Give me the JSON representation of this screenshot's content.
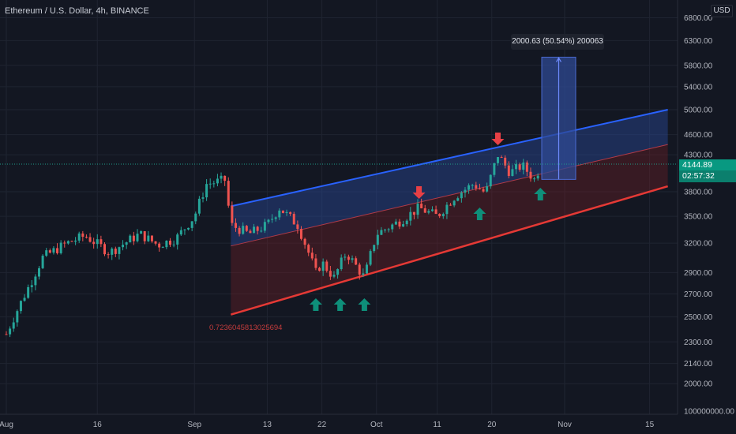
{
  "header": {
    "title": "Ethereum / U.S. Dollar, 4h, BINANCE",
    "currency_badge": "USD"
  },
  "price_tags": {
    "last_price": "4144.89",
    "countdown": "02:57:32"
  },
  "measure_label": "2000.63 (50.54%) 200063",
  "fib_label": "0.7236045813025694",
  "colors": {
    "background": "#131722",
    "grid": "#1f2431",
    "candle_up": "#26a69a",
    "candle_down": "#ef5350",
    "channel_upper": "#2962ff",
    "channel_lower": "#e53935",
    "channel_fill_blue": "#2a4a9a",
    "channel_fill_red": "#7a1f26",
    "arrow_up": "#0e8f7a",
    "arrow_down": "#e84045",
    "price_tag_up": "#089981",
    "measure_box": "#2f4a93"
  },
  "chart_data": {
    "type": "candlestick",
    "symbol": "Ethereum / U.S. Dollar",
    "timeframe": "4h",
    "exchange": "BINANCE",
    "y_axis": {
      "scale": "log",
      "ticks": [
        "6800.00",
        "6300.00",
        "5800.00",
        "5400.00",
        "5000.00",
        "4600.00",
        "4300.00",
        "3800.00",
        "3500.00",
        "3200.00",
        "2900.00",
        "2700.00",
        "2500.00",
        "2300.00",
        "2140.00",
        "2000.00",
        "100000000.00"
      ]
    },
    "x_axis": {
      "ticks": [
        "Aug",
        "16",
        "Sep",
        "13",
        "22",
        "Oct",
        "11",
        "20",
        "Nov",
        "15"
      ]
    },
    "anchor_closes": [
      {
        "date": "Aug 1",
        "price": 2360
      },
      {
        "date": "Aug 5",
        "price": 2800
      },
      {
        "date": "Aug 7",
        "price": 3050
      },
      {
        "date": "Aug 11",
        "price": 3200
      },
      {
        "date": "Aug 14",
        "price": 3280
      },
      {
        "date": "Aug 18",
        "price": 3100
      },
      {
        "date": "Aug 23",
        "price": 3300
      },
      {
        "date": "Aug 26",
        "price": 3180
      },
      {
        "date": "Aug 29",
        "price": 3250
      },
      {
        "date": "Sep 1",
        "price": 3500
      },
      {
        "date": "Sep 3",
        "price": 3900
      },
      {
        "date": "Sep 6",
        "price": 3950
      },
      {
        "date": "Sep 7",
        "price": 3400
      },
      {
        "date": "Sep 10",
        "price": 3300
      },
      {
        "date": "Sep 13",
        "price": 3400
      },
      {
        "date": "Sep 15",
        "price": 3600
      },
      {
        "date": "Sep 18",
        "price": 3400
      },
      {
        "date": "Sep 21",
        "price": 2900
      },
      {
        "date": "Sep 22",
        "price": 3000
      },
      {
        "date": "Sep 24",
        "price": 2850
      },
      {
        "date": "Sep 26",
        "price": 3100
      },
      {
        "date": "Sep 29",
        "price": 2850
      },
      {
        "date": "Oct 1",
        "price": 3300
      },
      {
        "date": "Oct 5",
        "price": 3450
      },
      {
        "date": "Oct 8",
        "price": 3600
      },
      {
        "date": "Oct 11",
        "price": 3500
      },
      {
        "date": "Oct 14",
        "price": 3750
      },
      {
        "date": "Oct 17",
        "price": 3900
      },
      {
        "date": "Oct 19",
        "price": 3780
      },
      {
        "date": "Oct 21",
        "price": 4300
      },
      {
        "date": "Oct 23",
        "price": 4050
      },
      {
        "date": "Oct 25",
        "price": 4150
      },
      {
        "date": "Oct 27",
        "price": 3960
      },
      {
        "date": "Oct 28",
        "price": 4140
      }
    ],
    "channel": {
      "upper": [
        {
          "date": "Sep 7",
          "price": 3620
        },
        {
          "date": "Nov 18",
          "price": 5000
        }
      ],
      "middle": [
        {
          "date": "Sep 7",
          "price": 3170
        },
        {
          "date": "Nov 18",
          "price": 4450
        }
      ],
      "lower": [
        {
          "date": "Sep 7",
          "price": 2520
        },
        {
          "date": "Nov 18",
          "price": 3870
        }
      ]
    },
    "measure": {
      "from_price": 3960,
      "to_price": 5960,
      "change": "2000.63 (50.54%) 200063"
    },
    "arrows": [
      {
        "direction": "up",
        "date": "Sep 21",
        "color": "green"
      },
      {
        "direction": "up",
        "date": "Sep 25",
        "color": "green"
      },
      {
        "direction": "up",
        "date": "Sep 29",
        "color": "green"
      },
      {
        "direction": "down",
        "date": "Oct 8",
        "color": "red"
      },
      {
        "direction": "up",
        "date": "Oct 18",
        "color": "green"
      },
      {
        "direction": "down",
        "date": "Oct 21",
        "color": "red"
      },
      {
        "direction": "up",
        "date": "Oct 28",
        "color": "green"
      }
    ],
    "last_price": 4144.89
  }
}
